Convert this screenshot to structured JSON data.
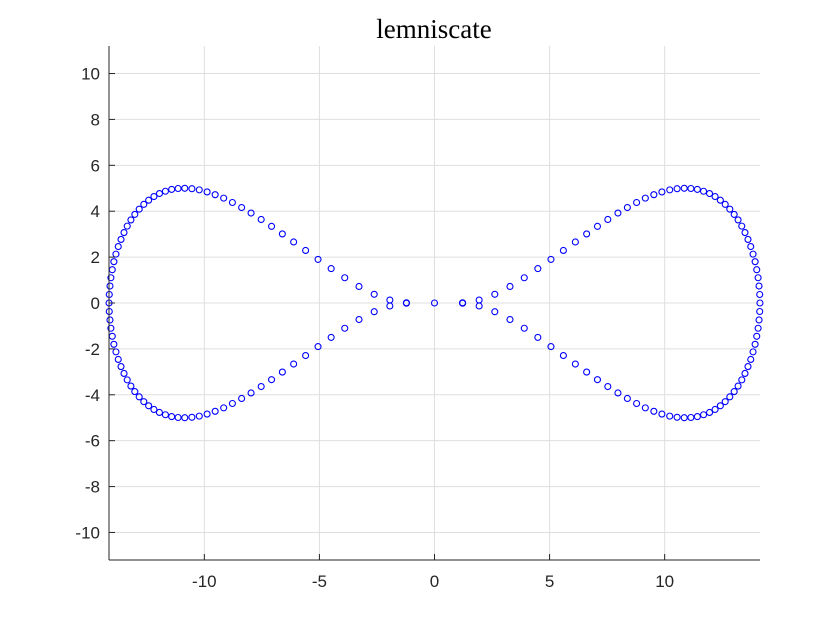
{
  "chart_data": {
    "type": "scatter",
    "title": "lemniscate",
    "xlabel": "",
    "ylabel": "",
    "xlim": [
      -14.142,
      14.142
    ],
    "ylim": [
      -11.2,
      11.2
    ],
    "grid": true,
    "legend": "none",
    "marker": "open-circle",
    "color": "#0000ff",
    "xticks": [
      -10,
      -5,
      0,
      5,
      10
    ],
    "xtick_labels": [
      "-10",
      "-5",
      "0",
      "5",
      "10"
    ],
    "yticks": [
      -10,
      -8,
      -6,
      -4,
      -2,
      0,
      2,
      4,
      6,
      8,
      10
    ],
    "ytick_labels": [
      "-10",
      "-8",
      "-6",
      "-4",
      "-2",
      "0",
      "2",
      "4",
      "6",
      "8",
      "10"
    ],
    "series": [
      {
        "x": [
          14.14,
          14.13,
          14.1,
          14.06,
          14.0,
          13.93,
          13.84,
          13.74,
          13.62,
          13.49,
          13.35,
          13.19,
          13.02,
          12.83,
          12.63,
          12.42,
          12.19,
          11.95,
          11.69,
          11.42,
          11.14,
          10.85,
          10.54,
          10.22,
          9.88,
          9.53,
          9.16,
          8.78,
          8.38,
          7.97,
          7.53,
          7.08,
          6.61,
          6.12,
          5.6,
          5.06,
          4.49,
          3.9,
          3.28,
          2.62,
          1.94,
          1.22,
          0.0,
          -1.22,
          -1.94,
          -2.62,
          -3.28,
          -3.9,
          -4.49,
          -5.06,
          -5.6,
          -6.12,
          -6.61,
          -7.08,
          -7.53,
          -7.97,
          -8.38,
          -8.78,
          -9.16,
          -9.53,
          -9.88,
          -10.22,
          -10.54,
          -10.85,
          -11.14,
          -11.42,
          -11.69,
          -11.95,
          -12.19,
          -12.42,
          -12.63,
          -12.83,
          -13.02,
          -13.19,
          -13.35,
          -13.49,
          -13.62,
          -13.74,
          -13.84,
          -13.93,
          -14.0,
          -14.06,
          -14.1,
          -14.13,
          -14.14,
          -14.13,
          -14.1,
          -14.06,
          -14.0,
          -13.93,
          -13.84,
          -13.74,
          -13.62,
          -13.49,
          -13.35,
          -13.19,
          -13.02,
          -12.83,
          -12.63,
          -12.42,
          -12.19,
          -11.95,
          -11.69,
          -11.42,
          -11.14,
          -10.85,
          -10.54,
          -10.22,
          -9.88,
          -9.53,
          -9.16,
          -8.78,
          -8.38,
          -7.97,
          -7.53,
          -7.08,
          -6.61,
          -6.12,
          -5.6,
          -5.06,
          -4.49,
          -3.9,
          -3.28,
          -2.62,
          -1.94,
          -1.22,
          1.22,
          1.94,
          2.62,
          3.28,
          3.9,
          4.49,
          5.06,
          5.6,
          6.12,
          6.61,
          7.08,
          7.53,
          7.97,
          8.38,
          8.78,
          9.16,
          9.53,
          9.88,
          10.22,
          10.54,
          10.85,
          11.14,
          11.42,
          11.69,
          11.95,
          12.19,
          12.42,
          12.63,
          12.83,
          13.02,
          13.19,
          13.35,
          13.49,
          13.62,
          13.74,
          13.84,
          13.93,
          14.0,
          14.06,
          14.1,
          14.13
        ],
        "y": [
          0.0,
          0.37,
          0.74,
          1.1,
          1.45,
          1.8,
          2.13,
          2.46,
          2.77,
          3.07,
          3.35,
          3.62,
          3.86,
          4.09,
          4.3,
          4.48,
          4.64,
          4.77,
          4.87,
          4.95,
          4.99,
          5.0,
          4.98,
          4.93,
          4.84,
          4.72,
          4.57,
          4.38,
          4.16,
          3.92,
          3.64,
          3.34,
          3.01,
          2.66,
          2.29,
          1.9,
          1.5,
          1.1,
          0.72,
          0.38,
          0.13,
          0.01,
          0.0,
          -0.01,
          -0.13,
          -0.38,
          -0.72,
          -1.1,
          -1.5,
          -1.9,
          -2.29,
          -2.66,
          -3.01,
          -3.34,
          -3.64,
          -3.92,
          -4.16,
          -4.38,
          -4.57,
          -4.72,
          -4.84,
          -4.93,
          -4.98,
          -5.0,
          -4.99,
          -4.95,
          -4.87,
          -4.77,
          -4.64,
          -4.48,
          -4.3,
          -4.09,
          -3.86,
          -3.62,
          -3.35,
          -3.07,
          -2.77,
          -2.46,
          -2.13,
          -1.8,
          -1.45,
          -1.1,
          -0.74,
          -0.37,
          0.0,
          0.37,
          0.74,
          1.1,
          1.45,
          1.8,
          2.13,
          2.46,
          2.77,
          3.07,
          3.35,
          3.62,
          3.86,
          4.09,
          4.3,
          4.48,
          4.64,
          4.77,
          4.87,
          4.95,
          4.99,
          5.0,
          4.98,
          4.93,
          4.84,
          4.72,
          4.57,
          4.38,
          4.16,
          3.92,
          3.64,
          3.34,
          3.01,
          2.66,
          2.29,
          1.9,
          1.5,
          1.1,
          0.72,
          0.38,
          0.13,
          0.01,
          -0.01,
          -0.13,
          -0.38,
          -0.72,
          -1.1,
          -1.5,
          -1.9,
          -2.29,
          -2.66,
          -3.01,
          -3.34,
          -3.64,
          -3.92,
          -4.16,
          -4.38,
          -4.57,
          -4.72,
          -4.84,
          -4.93,
          -4.98,
          -5.0,
          -4.99,
          -4.95,
          -4.87,
          -4.77,
          -4.64,
          -4.48,
          -4.3,
          -4.09,
          -3.86,
          -3.62,
          -3.35,
          -3.07,
          -2.77,
          -2.46,
          -2.13,
          -1.8,
          -1.45,
          -1.1,
          -0.74,
          -0.37
        ]
      }
    ]
  }
}
